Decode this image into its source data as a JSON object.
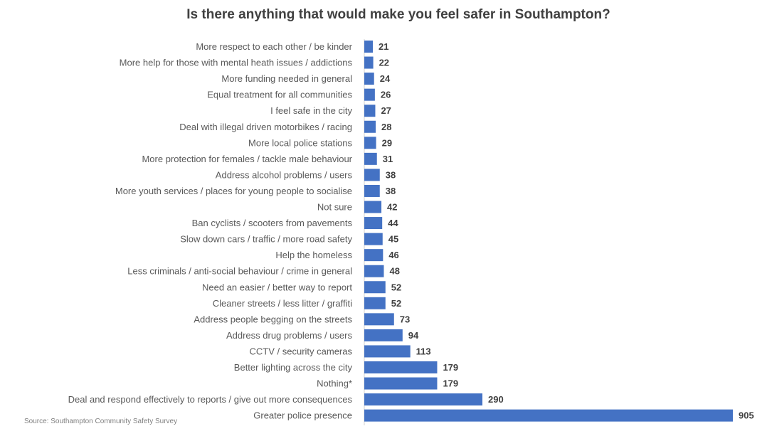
{
  "chart_data": {
    "type": "bar",
    "orientation": "horizontal",
    "title": "Is there anything that would make you feel safer in Southampton?",
    "source": "Source: Southampton Community Safety Survey",
    "bar_color": "#4472c4",
    "data_labels": true,
    "grid": false,
    "legend": "none",
    "xlim": [
      0,
      905
    ],
    "categories": [
      "More respect to each other / be kinder",
      "More help for those with mental heath issues / addictions",
      "More funding needed in general",
      "Equal treatment for all communities",
      "I feel safe in the city",
      "Deal with illegal driven motorbikes / racing",
      "More local police stations",
      "More protection for females / tackle male behaviour",
      "Address alcohol problems / users",
      "More youth services / places for young people to socialise",
      "Not sure",
      "Ban cyclists / scooters from pavements",
      "Slow down cars / traffic / more road safety",
      "Help the homeless",
      "Less criminals / anti-social behaviour / crime in general",
      "Need an easier / better way to report",
      "Cleaner streets / less litter / graffiti",
      "Address people begging on the streets",
      "Address drug problems / users",
      "CCTV / security cameras",
      "Better lighting across the city",
      "Nothing*",
      "Deal and respond effectively to reports / give out more consequences",
      "Greater police presence"
    ],
    "values": [
      21,
      22,
      24,
      26,
      27,
      28,
      29,
      31,
      38,
      38,
      42,
      44,
      45,
      46,
      48,
      52,
      52,
      73,
      94,
      113,
      179,
      179,
      290,
      905
    ]
  }
}
